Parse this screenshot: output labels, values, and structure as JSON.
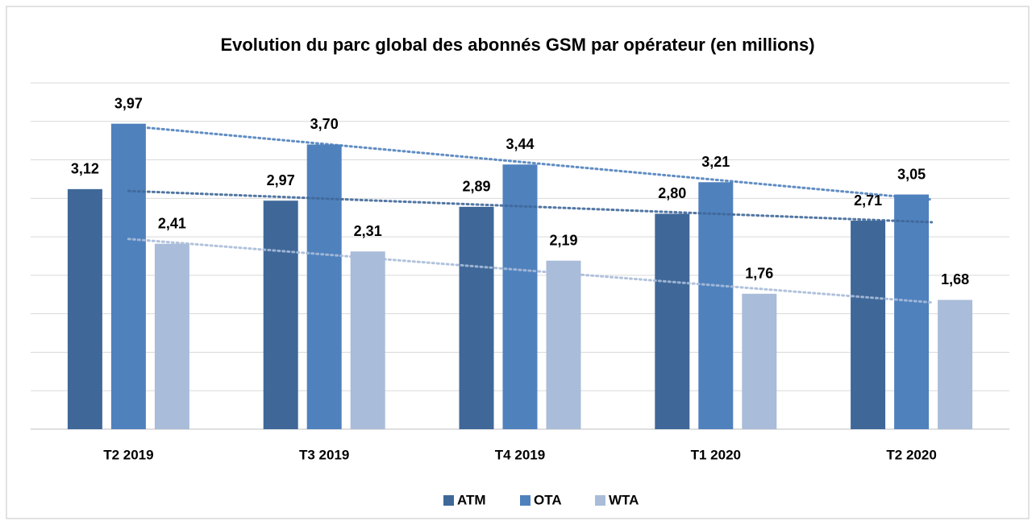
{
  "chart_data": {
    "type": "bar",
    "title": "Evolution du parc global des abonnés GSM par opérateur (en millions)",
    "categories": [
      "T2 2019",
      "T3 2019",
      "T4 2019",
      "T1 2020",
      "T2 2020"
    ],
    "series": [
      {
        "name": "ATM",
        "color": "#3f6899",
        "values": [
          3.12,
          2.97,
          2.89,
          2.8,
          2.71
        ],
        "value_labels": [
          "3,12",
          "2,97",
          "2,89",
          "2,80",
          "2,71"
        ]
      },
      {
        "name": "OTA",
        "color": "#4f81bd",
        "values": [
          3.97,
          3.7,
          3.44,
          3.21,
          3.05
        ],
        "value_labels": [
          "3,97",
          "3,70",
          "3,44",
          "3,21",
          "3,05"
        ]
      },
      {
        "name": "WTA",
        "color": "#a9bcd9",
        "values": [
          2.41,
          2.31,
          2.19,
          1.76,
          1.68
        ],
        "value_labels": [
          "2,41",
          "2,31",
          "2,19",
          "1,76",
          "1,68"
        ]
      }
    ],
    "ylim": [
      0,
      4.5
    ],
    "yticks": [
      0,
      0.5,
      1,
      1.5,
      2,
      2.5,
      3,
      3.5,
      4,
      4.5
    ],
    "grid": true,
    "trendline": true,
    "legend": "bottom"
  }
}
